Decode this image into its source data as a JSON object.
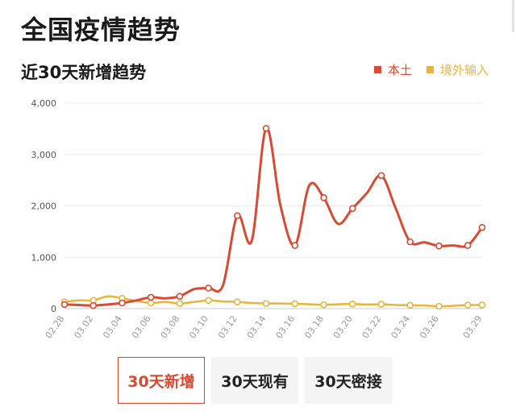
{
  "page": {
    "title": "全国疫情趋势"
  },
  "section": {
    "title": "近30天新增趋势"
  },
  "legend": {
    "local": {
      "label": "本土",
      "color": "#d94a32"
    },
    "imported": {
      "label": "境外输入",
      "color": "#e8b53a"
    }
  },
  "tabs": [
    {
      "label": "30天新增",
      "active": true
    },
    {
      "label": "30天现有",
      "active": false
    },
    {
      "label": "30天密接",
      "active": false
    }
  ],
  "chart_data": {
    "type": "line",
    "title": "近30天新增趋势",
    "xlabel": "",
    "ylabel": "",
    "ylim": [
      0,
      4000
    ],
    "y_ticks": [
      "0",
      "1,000",
      "2,000",
      "3,000",
      "4,000"
    ],
    "x_tick_labels": [
      "02.28",
      "03.02",
      "03.04",
      "03.06",
      "03.08",
      "03.10",
      "03.12",
      "03.14",
      "03.16",
      "03.18",
      "03.20",
      "03.22",
      "03.24",
      "03.26",
      "03.29"
    ],
    "categories": [
      "02.28",
      "03.01",
      "03.02",
      "03.03",
      "03.04",
      "03.05",
      "03.06",
      "03.07",
      "03.08",
      "03.09",
      "03.10",
      "03.11",
      "03.12",
      "03.13",
      "03.14",
      "03.15",
      "03.16",
      "03.17",
      "03.18",
      "03.19",
      "03.20",
      "03.21",
      "03.22",
      "03.23",
      "03.24",
      "03.25",
      "03.26",
      "03.27",
      "03.28",
      "03.29"
    ],
    "series": [
      {
        "name": "本土",
        "color": "#d94a32",
        "values": [
          80,
          70,
          60,
          80,
          110,
          160,
          220,
          200,
          240,
          380,
          400,
          450,
          1810,
          1320,
          3510,
          2000,
          1230,
          2400,
          2160,
          1650,
          1950,
          2250,
          2590,
          1950,
          1300,
          1290,
          1220,
          1230,
          1230,
          1580
        ]
      },
      {
        "name": "境外输入",
        "color": "#e8b53a",
        "values": [
          130,
          160,
          160,
          240,
          200,
          150,
          110,
          130,
          100,
          130,
          160,
          140,
          130,
          110,
          100,
          100,
          95,
          85,
          75,
          85,
          90,
          80,
          85,
          70,
          65,
          60,
          45,
          55,
          70,
          70
        ]
      }
    ],
    "grid": true,
    "legend_position": "top-right"
  }
}
